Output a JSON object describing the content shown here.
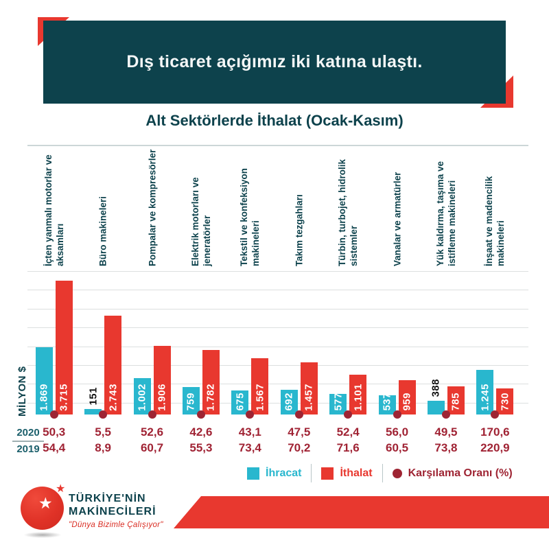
{
  "banner": {
    "title": "Dış ticaret açığımız iki katına ulaştı."
  },
  "subtitle": "Alt Sektörlerde İthalat (Ocak-Kasım)",
  "colors": {
    "banner_bg": "#0d424c",
    "export_cyan": "#29b7ce",
    "import_red": "#e8382f",
    "coverage_maroon": "#9e2433",
    "accent_red": "#e8382f",
    "text_teal": "#0d424c"
  },
  "chart_data": {
    "type": "bar",
    "title": "Alt Sektörlerde İthalat (Ocak-Kasım)",
    "xlabel": "",
    "ylabel": "MİLYON $",
    "ylim": [
      0,
      4000
    ],
    "grid": true,
    "legend_position": "bottom",
    "categories": [
      "İçten yanmalı motorlar ve aksamları",
      "Büro makineleri",
      "Pompalar ve kompresörler",
      "Elektrik motorları ve jeneratörler",
      "Tekstil ve konfeksiyon makineleri",
      "Takım tezgahları",
      "Türbin, turbojet, hidrolik sistemler",
      "Vanalar ve armatürler",
      "Yük kaldırma, taşıma ve istifleme makineleri",
      "İnşaat ve madencilik makineleri"
    ],
    "series": [
      {
        "name": "İhracat",
        "color": "#29b7ce",
        "values": [
          1869,
          151,
          1002,
          759,
          675,
          692,
          577,
          537,
          388,
          1245
        ],
        "labels": [
          "1.869",
          "151",
          "1.002",
          "759",
          "675",
          "692",
          "577",
          "537",
          "388",
          "1.245"
        ]
      },
      {
        "name": "İthalat",
        "color": "#e8382f",
        "values": [
          3715,
          2743,
          1906,
          1782,
          1567,
          1457,
          1101,
          959,
          785,
          730
        ],
        "labels": [
          "3.715",
          "2.743",
          "1.906",
          "1.782",
          "1.567",
          "1.457",
          "1.101",
          "959",
          "785",
          "730"
        ]
      }
    ],
    "coverage_ratio": {
      "name": "Karşılama Oranı (%)",
      "rows": [
        {
          "year": "2020",
          "values": [
            "50,3",
            "5,5",
            "52,6",
            "42,6",
            "43,1",
            "47,5",
            "52,4",
            "56,0",
            "49,5",
            "170,6"
          ]
        },
        {
          "year": "2019",
          "values": [
            "54,4",
            "8,9",
            "60,7",
            "55,3",
            "73,4",
            "70,2",
            "71,6",
            "60,5",
            "73,8",
            "220,9"
          ]
        }
      ]
    }
  },
  "legend": {
    "ihracat": "İhracat",
    "ithalat": "İthalat",
    "karsilama": "Karşılama Oranı (%)"
  },
  "logo": {
    "line1": "TÜRKİYE'NİN",
    "line2": "MAKİNECİLERİ",
    "slogan": "\"Dünya Bizimle Çalışıyor\"",
    "star": "★"
  }
}
